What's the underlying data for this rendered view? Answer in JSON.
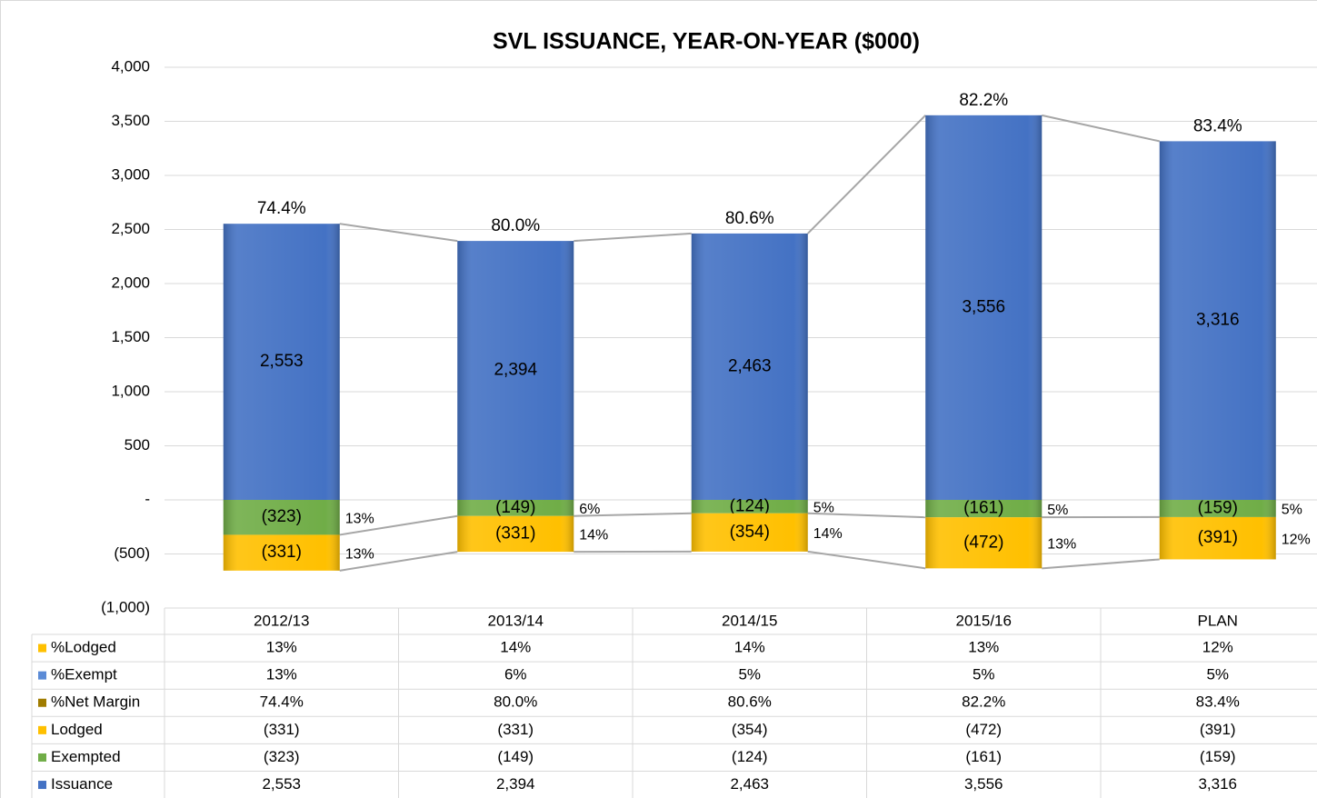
{
  "chart_data": {
    "type": "bar",
    "stacked": true,
    "title": "SVL ISSUANCE, YEAR-ON-YEAR ($000)",
    "categories": [
      "2012/13",
      "2013/14",
      "2014/15",
      "2015/16",
      "PLAN"
    ],
    "ylim": [
      -1000,
      4000
    ],
    "yticks": [
      {
        "value": -1000,
        "label": "(1,000)"
      },
      {
        "value": -500,
        "label": "(500)"
      },
      {
        "value": 0,
        "label": "-"
      },
      {
        "value": 500,
        "label": "500"
      },
      {
        "value": 1000,
        "label": "1,000"
      },
      {
        "value": 1500,
        "label": "1,500"
      },
      {
        "value": 2000,
        "label": "2,000"
      },
      {
        "value": 2500,
        "label": "2,500"
      },
      {
        "value": 3000,
        "label": "3,000"
      },
      {
        "value": 3500,
        "label": "3,500"
      },
      {
        "value": 4000,
        "label": "4,000"
      }
    ],
    "grid": true,
    "series": [
      {
        "name": "%Lodged",
        "type": "text",
        "color": "#ffc000",
        "values": [
          13,
          14,
          14,
          13,
          12
        ],
        "value_labels": [
          "13%",
          "14%",
          "14%",
          "13%",
          "12%"
        ]
      },
      {
        "name": "%Exempt",
        "type": "text",
        "color": "#5b8bd6",
        "values": [
          13,
          6,
          5,
          5,
          5
        ],
        "value_labels": [
          "13%",
          "6%",
          "5%",
          "5%",
          "5%"
        ]
      },
      {
        "name": "%Net Margin",
        "type": "text",
        "color": "#a07c00",
        "values": [
          74.4,
          80.0,
          80.6,
          82.2,
          83.4
        ],
        "value_labels": [
          "74.4%",
          "80.0%",
          "80.6%",
          "82.2%",
          "83.4%"
        ]
      },
      {
        "name": "Lodged",
        "type": "bar",
        "color": "#ffc000",
        "values": [
          -331,
          -331,
          -354,
          -472,
          -391
        ],
        "value_labels": [
          "(331)",
          "(331)",
          "(354)",
          "(472)",
          "(391)"
        ]
      },
      {
        "name": "Exempted",
        "type": "bar",
        "color": "#70ad47",
        "values": [
          -323,
          -149,
          -124,
          -161,
          -159
        ],
        "value_labels": [
          "(323)",
          "(149)",
          "(124)",
          "(161)",
          "(159)"
        ]
      },
      {
        "name": "Issuance",
        "type": "bar",
        "color": "#4472c4",
        "values": [
          2553,
          2394,
          2463,
          3556,
          3316
        ],
        "value_labels": [
          "2,553",
          "2,394",
          "2,463",
          "3,556",
          "3,316"
        ]
      }
    ]
  }
}
